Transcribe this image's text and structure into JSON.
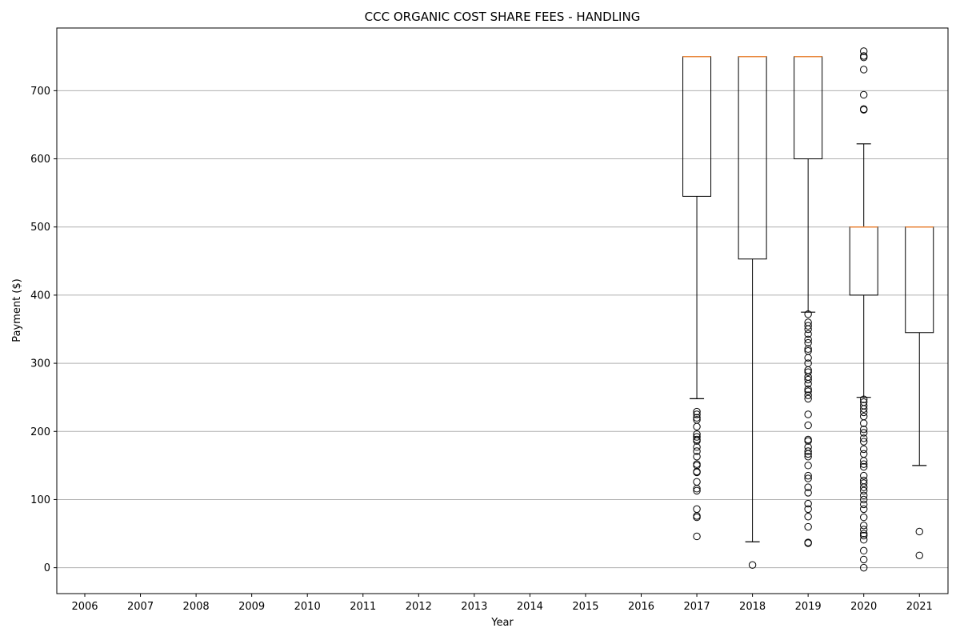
{
  "chart_data": {
    "type": "box",
    "title": "CCC ORGANIC COST SHARE FEES - HANDLING",
    "xlabel": "Year",
    "ylabel": "Payment ($)",
    "ylim": [
      -38,
      792
    ],
    "yticks": [
      0,
      100,
      200,
      300,
      400,
      500,
      600,
      700
    ],
    "grid": "y",
    "categories": [
      "2006",
      "2007",
      "2008",
      "2009",
      "2010",
      "2011",
      "2012",
      "2013",
      "2014",
      "2015",
      "2016",
      "2017",
      "2018",
      "2019",
      "2020",
      "2021"
    ],
    "boxes": [
      {
        "category": "2017",
        "whisker_low": 248,
        "q1": 545,
        "median": 750,
        "q3": 750,
        "whisker_high": 750,
        "outliers": [
          46,
          74,
          76,
          86,
          113,
          116,
          126,
          140,
          141,
          150,
          152,
          163,
          171,
          177,
          186,
          188,
          192,
          196,
          207,
          217,
          220,
          225,
          229
        ]
      },
      {
        "category": "2018",
        "whisker_low": 38,
        "q1": 453,
        "median": 750,
        "q3": 750,
        "whisker_high": 750,
        "outliers": [
          4
        ]
      },
      {
        "category": "2019",
        "whisker_low": 375,
        "q1": 600,
        "median": 750,
        "q3": 750,
        "whisker_high": 750,
        "outliers": [
          36,
          37,
          60,
          75,
          86,
          94,
          110,
          118,
          131,
          135,
          150,
          163,
          167,
          171,
          177,
          186,
          188,
          209,
          225,
          248,
          253,
          259,
          262,
          270,
          276,
          280,
          287,
          290,
          300,
          308,
          318,
          321,
          330,
          335,
          343,
          350,
          355,
          360,
          372
        ]
      },
      {
        "category": "2020",
        "whisker_low": 250,
        "q1": 400,
        "median": 500,
        "q3": 500,
        "whisker_high": 622,
        "outliers": [
          0,
          12,
          25,
          41,
          47,
          50,
          56,
          62,
          74,
          86,
          93,
          100,
          106,
          113,
          118,
          124,
          128,
          135,
          148,
          152,
          157,
          167,
          174,
          185,
          190,
          198,
          203,
          212,
          222,
          228,
          233,
          238,
          243,
          247,
          672,
          673,
          694,
          731,
          749,
          751,
          758
        ]
      },
      {
        "category": "2021",
        "whisker_low": 150,
        "q1": 345,
        "median": 500,
        "q3": 500,
        "whisker_high": 500,
        "outliers": [
          18,
          53
        ]
      }
    ],
    "colors": {
      "box": "#000000",
      "median": "#e8853a",
      "grid": "#b0b0b0"
    }
  }
}
